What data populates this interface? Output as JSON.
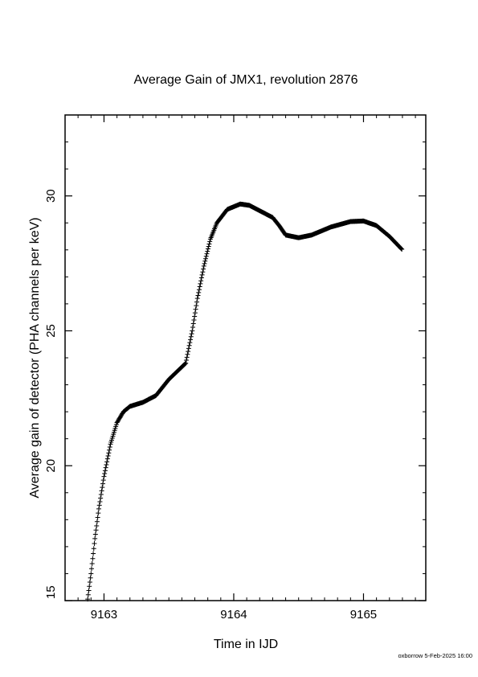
{
  "chart_data": {
    "type": "scatter",
    "title": "Average Gain of JMX1, revolution 2876",
    "xlabel": "Time in IJD",
    "ylabel": "Average gain of detector (PHA channels per keV)",
    "xlim": [
      9162.7,
      9165.48
    ],
    "ylim": [
      15,
      33
    ],
    "xticks": [
      9163,
      9164,
      9165
    ],
    "xtick_labels": [
      "9163",
      "9164",
      "9165"
    ],
    "yticks": [
      15,
      20,
      25,
      30
    ],
    "ytick_labels": [
      "15",
      "20",
      "25",
      "30"
    ],
    "grid": false,
    "marker": "plus",
    "series": [
      {
        "points": [
          [
            9162.87,
            14.9
          ],
          [
            9162.9,
            16.0
          ],
          [
            9162.93,
            17.3
          ],
          [
            9162.96,
            18.4
          ],
          [
            9163.0,
            19.6
          ],
          [
            9163.05,
            20.8
          ],
          [
            9163.1,
            21.6
          ],
          [
            9163.15,
            22.0
          ],
          [
            9163.2,
            22.2
          ],
          [
            9163.3,
            22.35
          ],
          [
            9163.4,
            22.6
          ],
          [
            9163.5,
            23.2
          ],
          [
            9163.63,
            23.8
          ],
          [
            9163.68,
            25.0
          ],
          [
            9163.72,
            26.2
          ],
          [
            9163.77,
            27.4
          ],
          [
            9163.82,
            28.4
          ],
          [
            9163.87,
            29.0
          ],
          [
            9163.95,
            29.5
          ],
          [
            9164.05,
            29.7
          ],
          [
            9164.12,
            29.65
          ],
          [
            9164.2,
            29.45
          ],
          [
            9164.3,
            29.2
          ],
          [
            9164.35,
            28.9
          ],
          [
            9164.4,
            28.55
          ],
          [
            9164.5,
            28.45
          ],
          [
            9164.6,
            28.55
          ],
          [
            9164.75,
            28.85
          ],
          [
            9164.9,
            29.05
          ],
          [
            9165.0,
            29.07
          ],
          [
            9165.1,
            28.9
          ],
          [
            9165.2,
            28.5
          ],
          [
            9165.3,
            28.0
          ]
        ]
      }
    ]
  },
  "footer": {
    "credit": "oxborrow  5-Feb-2025 16:00"
  }
}
